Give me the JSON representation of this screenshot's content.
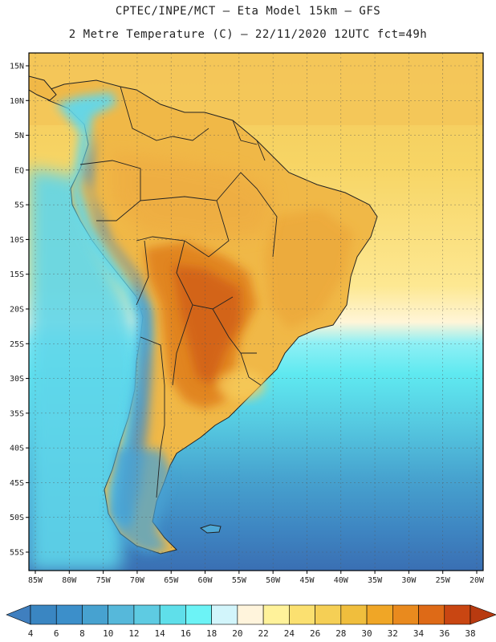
{
  "header": {
    "line1": "CPTEC/INPE/MCT –  Eta Model 15km – GFS",
    "line2": "2 Metre Temperature (C) – 22/11/2020 12UTC fct=49h"
  },
  "map": {
    "region": "South America",
    "variable": "2 Metre Temperature (C)",
    "lat_labels": [
      "15N",
      "10N",
      "5N",
      "EQ",
      "5S",
      "10S",
      "15S",
      "20S",
      "25S",
      "30S",
      "35S",
      "40S",
      "45S",
      "50S",
      "55S"
    ],
    "lon_labels": [
      "85W",
      "80W",
      "75W",
      "70W",
      "65W",
      "60W",
      "55W",
      "50W",
      "45W",
      "40W",
      "35W",
      "30W",
      "25W",
      "20W"
    ]
  },
  "colorbar": {
    "ticks": [
      "4",
      "6",
      "8",
      "10",
      "12",
      "14",
      "16",
      "18",
      "20",
      "22",
      "24",
      "26",
      "28",
      "30",
      "32",
      "34",
      "36",
      "38"
    ],
    "colors": [
      "#3f7fbf",
      "#3a86c2",
      "#3c8fca",
      "#47a2d0",
      "#56b8da",
      "#5ecbe2",
      "#5fdfea",
      "#6cf3f6",
      "#d2f5fb",
      "#fff4dc",
      "#fff29a",
      "#fbe070",
      "#f5cf55",
      "#f0be3d",
      "#f0a626",
      "#e98a1e",
      "#de6a17",
      "#c94612",
      "#b83a10"
    ]
  },
  "colors": {
    "warm": "#f2c659",
    "hot": "#e07a1e",
    "cold": "#3a6fb3",
    "ocean_mid": "#48b7d6",
    "cyan": "#5ef0f3"
  }
}
